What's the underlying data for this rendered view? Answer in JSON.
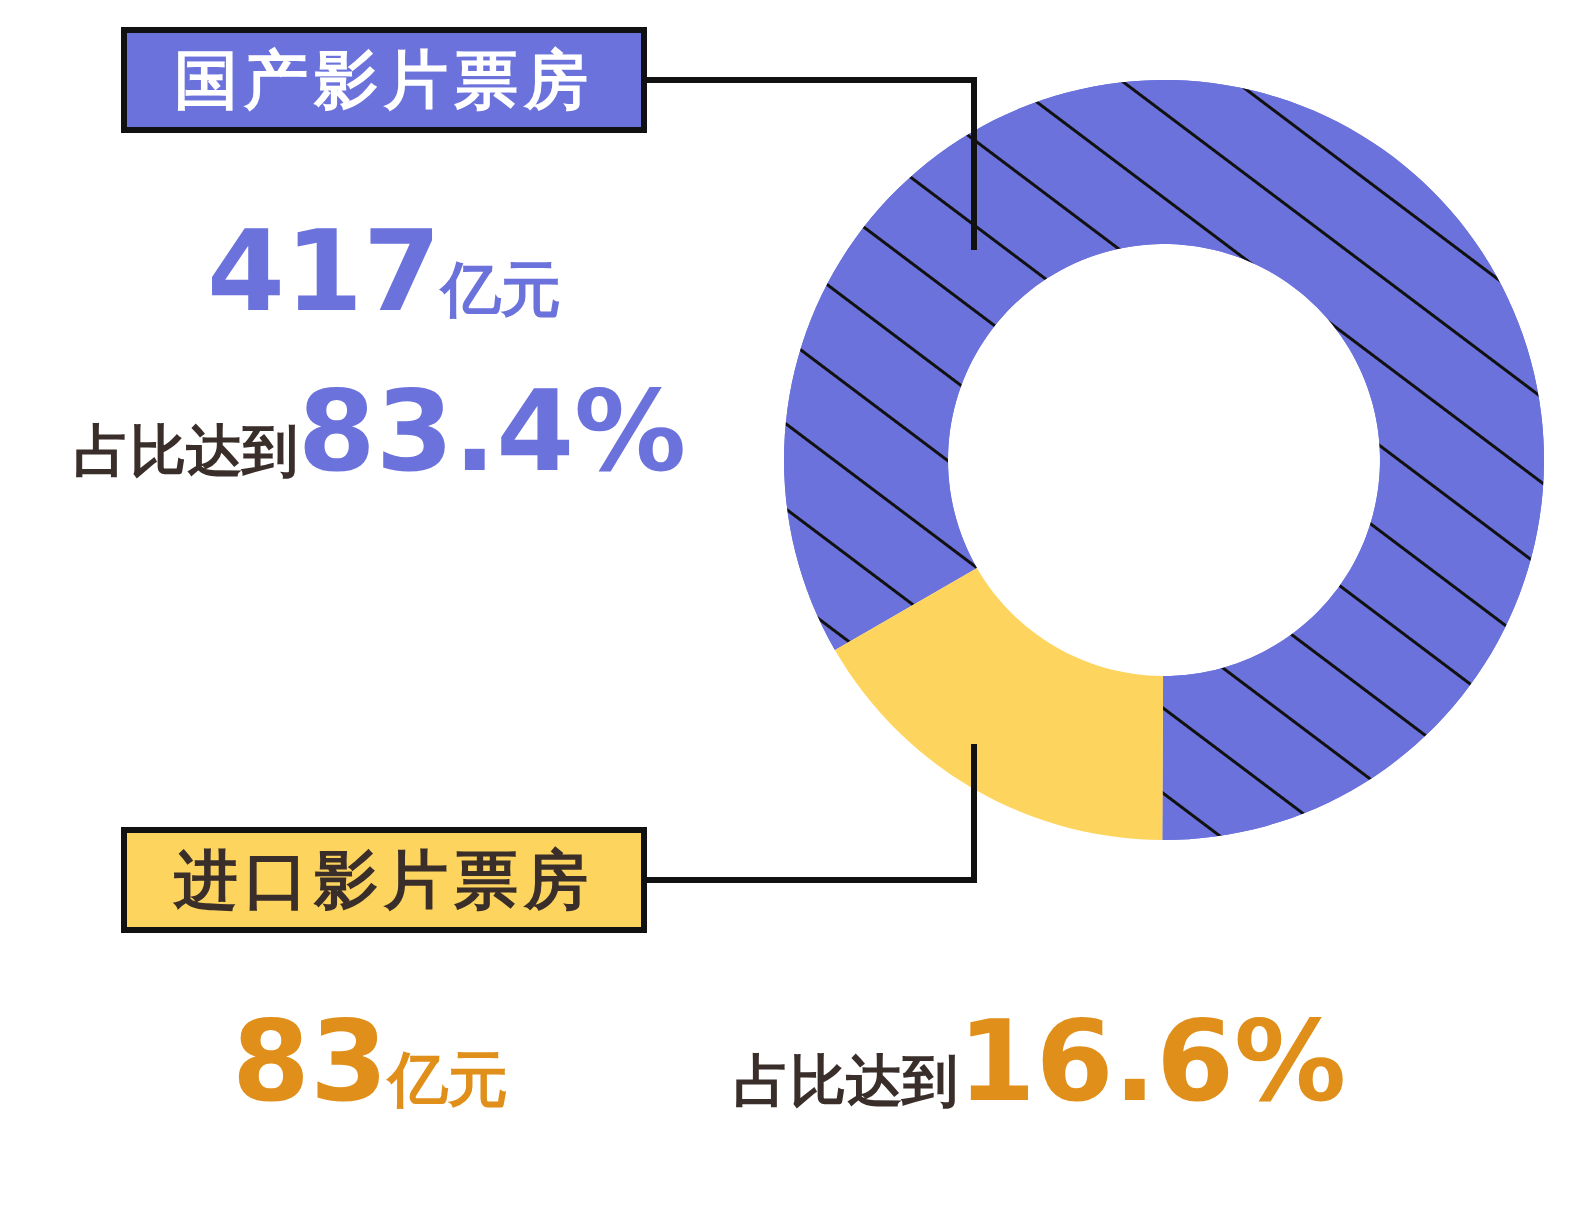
{
  "chart_data": {
    "type": "donut",
    "categories": [
      "国产影片票房",
      "进口影片票房"
    ],
    "values": [
      417,
      83
    ],
    "colors": [
      "#6b72dc",
      "#fdd55e"
    ],
    "value_labels": [
      "417亿元",
      "83亿元"
    ],
    "annotations": [
      "占比达到83.4%",
      "占比达到16.6%"
    ]
  }
}
